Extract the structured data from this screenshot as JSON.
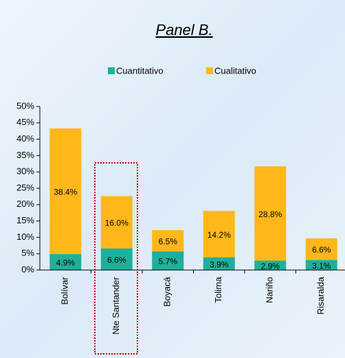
{
  "chart_data": {
    "type": "stacked_bar",
    "title": "Panel B.",
    "categories": [
      "Bolívar",
      "Nte Santander",
      "Boyacá",
      "Tolima",
      "Nariño",
      "Risaralda"
    ],
    "series": [
      {
        "name": "Cuantitativo",
        "color": "#1fb09b",
        "values": [
          4.9,
          6.6,
          5.7,
          3.9,
          2.9,
          3.1
        ],
        "value_labels": [
          "4.9%",
          "6.6%",
          "5.7%",
          "3.9%",
          "2.9%",
          "3.1%"
        ]
      },
      {
        "name": "Cualitativo",
        "color": "#ffb719",
        "values": [
          38.4,
          16.0,
          6.5,
          14.2,
          28.8,
          6.6
        ],
        "value_labels": [
          "38.4%",
          "16.0%",
          "6.5%",
          "14.2%",
          "28.8%",
          "6.6%"
        ]
      }
    ],
    "ylim": [
      0,
      50
    ],
    "yticks": [
      {
        "value": 0,
        "label": "0%"
      },
      {
        "value": 5,
        "label": "5%"
      },
      {
        "value": 10,
        "label": "10%"
      },
      {
        "value": 15,
        "label": "15%"
      },
      {
        "value": 20,
        "label": "20%"
      },
      {
        "value": 25,
        "label": "25%"
      },
      {
        "value": 30,
        "label": "30%"
      },
      {
        "value": 35,
        "label": "35%"
      },
      {
        "value": 40,
        "label": "40%"
      },
      {
        "value": 45,
        "label": "45%"
      },
      {
        "value": 50,
        "label": "50%"
      }
    ],
    "legend": "top"
  }
}
